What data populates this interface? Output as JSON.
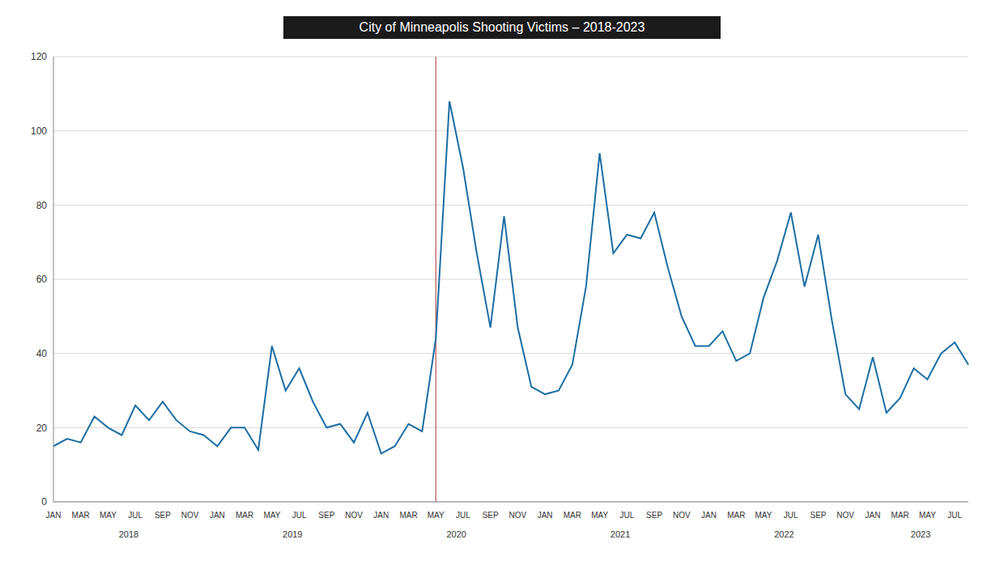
{
  "chart_data": {
    "type": "line",
    "title": "City of Minneapolis Shooting Victims – 2018-2023",
    "categories": [
      "JAN",
      null,
      "MAR",
      null,
      "MAY",
      null,
      "JUL",
      null,
      "SEP",
      null,
      "NOV",
      null,
      "JAN",
      null,
      "MAR",
      null,
      "MAY",
      null,
      "JUL",
      null,
      "SEP",
      null,
      "NOV",
      null,
      "JAN",
      null,
      "MAR",
      null,
      "MAY",
      null,
      "JUL",
      null,
      "SEP",
      null,
      "NOV",
      null,
      "JAN",
      null,
      "MAR",
      null,
      "MAY",
      null,
      "JUL",
      null,
      "SEP",
      null,
      "NOV",
      null,
      "JAN",
      null,
      "MAR",
      null,
      "MAY",
      null,
      "JUL",
      null,
      "SEP",
      null,
      "NOV",
      null,
      "JAN",
      null,
      "MAR",
      null,
      "MAY",
      null,
      "JUL",
      null
    ],
    "x_groups": [
      {
        "label": "2018",
        "count": 12
      },
      {
        "label": "2019",
        "count": 12
      },
      {
        "label": "2020",
        "count": 12
      },
      {
        "label": "2021",
        "count": 12
      },
      {
        "label": "2022",
        "count": 12
      },
      {
        "label": "2023",
        "count": 8
      }
    ],
    "values": [
      15,
      17,
      16,
      23,
      20,
      18,
      26,
      22,
      27,
      22,
      19,
      18,
      15,
      20,
      20,
      14,
      42,
      30,
      36,
      27,
      20,
      21,
      16,
      24,
      13,
      15,
      21,
      19,
      44,
      108,
      90,
      67,
      47,
      77,
      47,
      31,
      29,
      30,
      37,
      58,
      94,
      67,
      72,
      71,
      78,
      63,
      50,
      42,
      42,
      46,
      38,
      40,
      55,
      65,
      78,
      58,
      72,
      49,
      29,
      25,
      39,
      24,
      28,
      36,
      33,
      40,
      43,
      37
    ],
    "color": "#1c6ea4",
    "vertical_line": {
      "index": 28,
      "color": "#b03030"
    },
    "ylim": [
      0,
      120
    ],
    "yticks": [
      0,
      20,
      40,
      60,
      80,
      100,
      120
    ],
    "grid": true
  }
}
